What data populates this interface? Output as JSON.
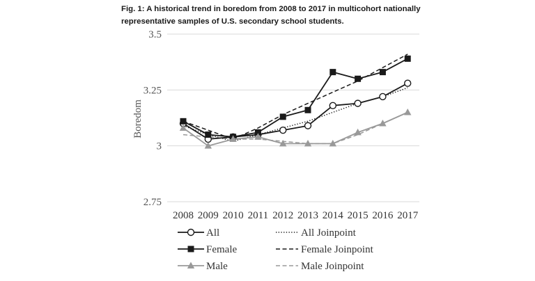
{
  "figure": {
    "caption_line1": "Fig. 1: A historical trend in boredom from 2008 to 2017 in multicohort nationally",
    "caption_line2": "representative samples of U.S. secondary school students."
  },
  "chart_data": {
    "type": "line",
    "title": "",
    "ylabel": "Boredom",
    "xlabel": "",
    "x": [
      "2008",
      "2009",
      "2010",
      "2011",
      "2012",
      "2013",
      "2014",
      "2015",
      "2016",
      "2017"
    ],
    "ylim": [
      2.75,
      3.5
    ],
    "yticks": [
      3.5,
      3.25,
      3,
      2.75
    ],
    "ytick_labels": [
      "3.5",
      "3.25",
      "3",
      "2.75"
    ],
    "grid": "horizontal",
    "legend_position": "bottom",
    "series": [
      {
        "name": "All",
        "style": "solid",
        "marker": "circle-open",
        "color": "#1a1a1a",
        "values": [
          3.1,
          3.03,
          3.04,
          3.05,
          3.07,
          3.09,
          3.18,
          3.19,
          3.22,
          3.28
        ]
      },
      {
        "name": "Female",
        "style": "solid",
        "marker": "square",
        "color": "#1a1a1a",
        "values": [
          3.11,
          3.05,
          3.04,
          3.06,
          3.13,
          3.16,
          3.33,
          3.3,
          3.33,
          3.39
        ]
      },
      {
        "name": "Male",
        "style": "solid",
        "marker": "triangle",
        "color": "#999999",
        "values": [
          3.08,
          3.0,
          3.03,
          3.04,
          3.01,
          3.01,
          3.01,
          3.06,
          3.1,
          3.15
        ]
      },
      {
        "name": "All Joinpoint",
        "style": "dotted",
        "marker": "none",
        "color": "#1a1a1a",
        "values": [
          3.09,
          3.05,
          3.02,
          3.05,
          3.08,
          3.11,
          3.15,
          3.19,
          3.22,
          3.26
        ]
      },
      {
        "name": "Female Joinpoint",
        "style": "dashed",
        "marker": "none",
        "color": "#1a1a1a",
        "values": [
          3.11,
          3.07,
          3.03,
          3.08,
          3.14,
          3.19,
          3.24,
          3.29,
          3.35,
          3.41
        ]
      },
      {
        "name": "Male Joinpoint",
        "style": "dashed",
        "marker": "none",
        "color": "#999999",
        "values": [
          3.05,
          3.04,
          3.03,
          3.03,
          3.02,
          3.01,
          3.01,
          3.05,
          3.1,
          3.15
        ]
      }
    ]
  }
}
